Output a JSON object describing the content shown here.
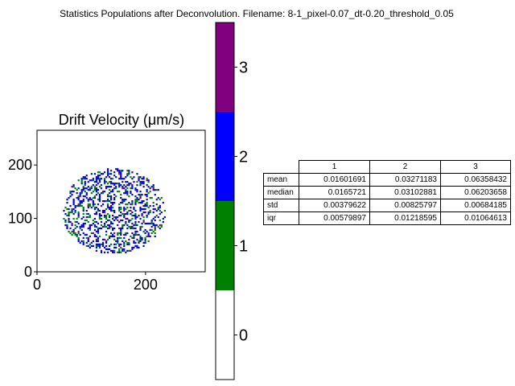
{
  "figure": {
    "suptitle": "Statistics Populations after Deconvolution. Filename: 8-1_pixel-0.07_dt-0.20_threshold_0.05"
  },
  "chart_data": [
    {
      "type": "heatmap",
      "title": "Drift Velocity (μm/s)",
      "xlabel": "",
      "ylabel": "",
      "xlim": [
        0,
        310
      ],
      "ylim": [
        0,
        265
      ],
      "x_ticks": [
        "0",
        "200"
      ],
      "y_ticks": [
        "0",
        "100",
        "200"
      ],
      "x_tick_values": [
        0,
        200
      ],
      "y_tick_values": [
        0,
        100,
        200
      ],
      "description_of_values": "categorical population map (0 = white, 1 = green, 2 = blue, 3 = purple) inside an elliptical cell region",
      "cell_region": {
        "center": [
          140,
          115
        ],
        "semi_axes": [
          95,
          80
        ]
      },
      "colorbar": {
        "categories": [
          "0",
          "1",
          "2",
          "3"
        ],
        "colors": [
          "#ffffff",
          "#008000",
          "#0000ff",
          "#800080"
        ],
        "tick_values": [
          0,
          1,
          2,
          3
        ]
      }
    },
    {
      "type": "table",
      "columns": [
        "1",
        "2",
        "3"
      ],
      "rows": [
        {
          "label": "mean",
          "values": [
            "0.01601691",
            "0.03271183",
            "0.06358432"
          ]
        },
        {
          "label": "median",
          "values": [
            "0.0165721",
            "0.03102881",
            "0.06203658"
          ]
        },
        {
          "label": "std",
          "values": [
            "0.00379622",
            "0.00825797",
            "0.00684185"
          ]
        },
        {
          "label": "iqr",
          "values": [
            "0.00579897",
            "0.01218595",
            "0.01064613"
          ]
        }
      ]
    }
  ]
}
